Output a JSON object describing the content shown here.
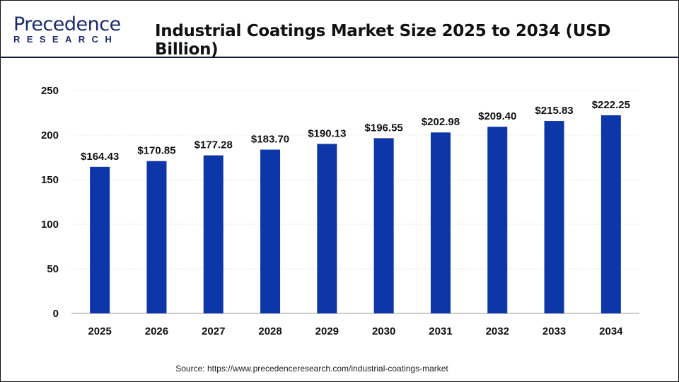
{
  "logo": {
    "line1": "Precedence",
    "line2": "RESEARCH"
  },
  "title": "Industrial Coatings Market Size 2025 to 2034 (USD Billion)",
  "source": "Source: https://www.precedenceresearch.com/industrial-coatings-market",
  "chart_data": {
    "type": "bar",
    "title": "Industrial Coatings Market Size 2025 to 2034 (USD Billion)",
    "categories": [
      "2025",
      "2026",
      "2027",
      "2028",
      "2029",
      "2030",
      "2031",
      "2032",
      "2033",
      "2034"
    ],
    "values": [
      164.43,
      170.85,
      177.28,
      183.7,
      190.13,
      196.55,
      202.98,
      209.4,
      215.83,
      222.25
    ],
    "labels": [
      "$164.43",
      "$170.85",
      "$177.28",
      "$183.70",
      "$190.13",
      "$196.55",
      "$202.98",
      "$209.40",
      "$215.83",
      "$222.25"
    ],
    "yticks": [
      0,
      50,
      100,
      150,
      200,
      250
    ],
    "ylim": [
      0,
      250
    ],
    "grid": true,
    "bar_color": "#0d36a8"
  }
}
